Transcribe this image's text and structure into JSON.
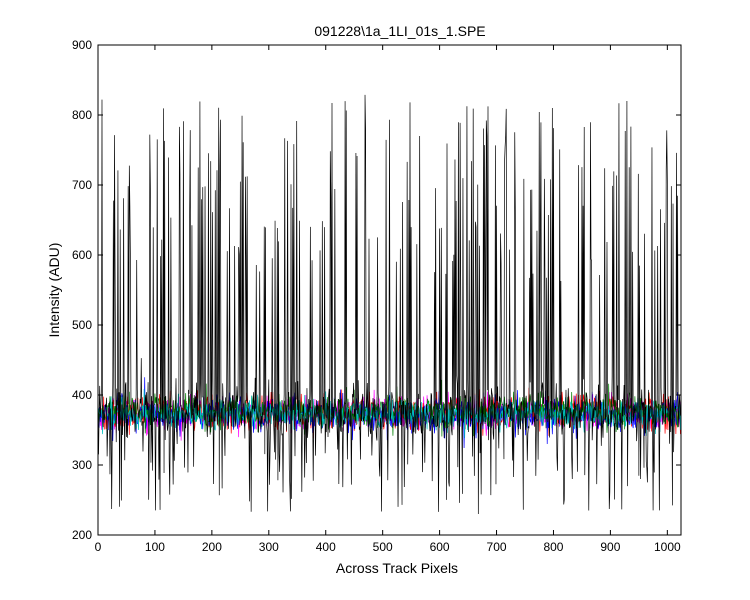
{
  "chart_data": {
    "type": "line",
    "title": "091228\\1a_1LI_01s_1.SPE",
    "xlabel": "Across Track Pixels",
    "ylabel": "Intensity (ADU)",
    "xlim": [
      0,
      1024
    ],
    "ylim": [
      200,
      900
    ],
    "xticks": [
      "0",
      "100",
      "200",
      "300",
      "400",
      "500",
      "600",
      "700",
      "800",
      "900",
      "1000"
    ],
    "yticks": [
      "200",
      "300",
      "400",
      "500",
      "600",
      "700",
      "800",
      "900"
    ],
    "grid": false,
    "legend": "none",
    "series": [
      {
        "color": "#ff00ff",
        "center": 374,
        "spread": 14,
        "spike_fraction": 0
      },
      {
        "color": "#ff0000",
        "center": 375,
        "spread": 15,
        "spike_fraction": 0
      },
      {
        "color": "#0000ff",
        "center": 372,
        "spread": 15,
        "spike_fraction": 0
      },
      {
        "color": "#008000",
        "center": 376,
        "spread": 15,
        "spike_fraction": 0
      },
      {
        "color": "#00bfbf",
        "center": 373,
        "spread": 13,
        "spike_fraction": 0
      },
      {
        "color": "#000000",
        "center": 375,
        "spread": 25,
        "spike_fraction": 0.32,
        "spike_high": [
          560,
          830
        ],
        "spike_low": [
          230,
          320
        ]
      }
    ]
  }
}
